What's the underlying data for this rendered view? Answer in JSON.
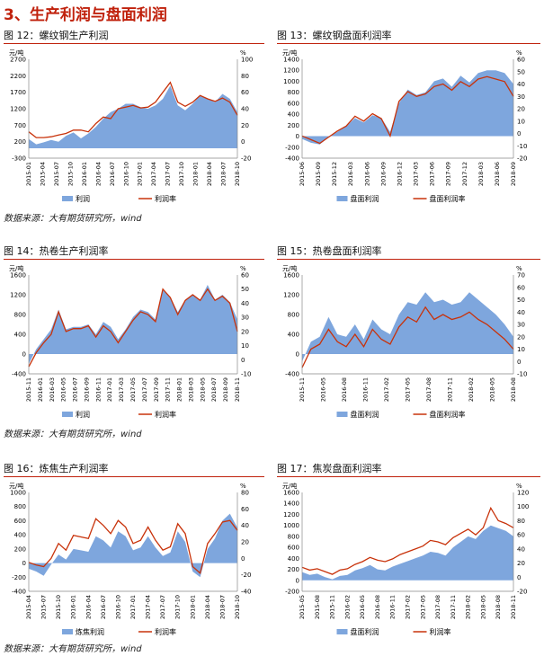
{
  "section_title": "3、生产利润与盘面利润",
  "source_note": "数据来源：大有期货研究所，wind",
  "colors": {
    "area": "#7ea6dd",
    "line": "#c8320a",
    "accent": "#c0210c"
  },
  "chart_data": [
    {
      "id": "c12",
      "type": "area",
      "title": "图 12：螺纹钢生产利润",
      "left_unit": "元/吨",
      "right_unit": "%",
      "ylim": [
        -300,
        2700
      ],
      "yticks": [
        -300,
        200,
        700,
        1200,
        1700,
        2200,
        2700
      ],
      "y2lim": [
        -20,
        100
      ],
      "y2ticks": [
        -20,
        0,
        20,
        40,
        60,
        80,
        100
      ],
      "xlabels": [
        "2015-01",
        "2015-04",
        "2015-07",
        "2015-10",
        "2016-01",
        "2016-04",
        "2016-07",
        "2016-10",
        "2017-01",
        "2017-04",
        "2017-07",
        "2017-10",
        "2018-01",
        "2018-04",
        "2018-07",
        "2018-10"
      ],
      "series": [
        {
          "name": "利润",
          "kind": "area",
          "values": [
            280,
            120,
            180,
            250,
            200,
            380,
            480,
            300,
            450,
            650,
            900,
            1100,
            1200,
            1350,
            1350,
            1250,
            1200,
            1300,
            1500,
            1900,
            1300,
            1150,
            1350,
            1600,
            1500,
            1400,
            1650,
            1500,
            1100
          ]
        },
        {
          "name": "利润率",
          "kind": "line",
          "values": [
            12,
            5,
            5,
            6,
            8,
            10,
            14,
            14,
            12,
            22,
            30,
            28,
            40,
            42,
            44,
            41,
            42,
            48,
            60,
            72,
            48,
            43,
            48,
            56,
            52,
            49,
            53,
            48,
            32
          ]
        }
      ]
    },
    {
      "id": "c13",
      "type": "area",
      "title": "图 13：螺纹钢盘面利润率",
      "left_unit": "元/吨",
      "right_unit": "%",
      "ylim": [
        -400,
        1400
      ],
      "yticks": [
        -400,
        -200,
        0,
        200,
        400,
        600,
        800,
        1000,
        1200,
        1400
      ],
      "y2lim": [
        -20,
        60
      ],
      "y2ticks": [
        -20,
        -10,
        0,
        10,
        20,
        30,
        40,
        50,
        60
      ],
      "xlabels": [
        "2015-06",
        "2015-09",
        "2015-12",
        "2016-03",
        "2016-06",
        "2016-09",
        "2016-12",
        "2017-03",
        "2017-06",
        "2017-09",
        "2017-12",
        "2018-03",
        "2018-06",
        "2018-09"
      ],
      "series": [
        {
          "name": "盘面利润",
          "kind": "area",
          "values": [
            -50,
            -120,
            -150,
            -20,
            80,
            180,
            330,
            250,
            380,
            330,
            80,
            600,
            850,
            750,
            800,
            1000,
            1050,
            900,
            1100,
            980,
            1150,
            1200,
            1200,
            1150,
            950
          ]
        },
        {
          "name": "盘面利润率",
          "kind": "line",
          "values": [
            -2,
            -5,
            -8,
            -3,
            2,
            6,
            14,
            10,
            16,
            12,
            -2,
            26,
            34,
            30,
            32,
            38,
            40,
            35,
            42,
            38,
            44,
            46,
            44,
            42,
            30
          ]
        }
      ]
    },
    {
      "id": "c14",
      "type": "area",
      "title": "图 14：热卷生产利润率",
      "left_unit": "元/吨",
      "right_unit": "%",
      "ylim": [
        -400,
        1600
      ],
      "yticks": [
        -400,
        0,
        400,
        800,
        1200,
        1600
      ],
      "y2lim": [
        -10,
        60
      ],
      "y2ticks": [
        -10,
        0,
        10,
        20,
        30,
        40,
        50,
        60
      ],
      "xlabels": [
        "2015-11",
        "2016-01",
        "2016-03",
        "2016-05",
        "2016-07",
        "2016-09",
        "2016-11",
        "2017-01",
        "2017-03",
        "2017-05",
        "2017-07",
        "2017-09",
        "2017-11",
        "2018-01",
        "2018-03",
        "2018-05",
        "2018-07",
        "2018-09",
        "2018-11"
      ],
      "series": [
        {
          "name": "利润",
          "kind": "area",
          "values": [
            -200,
            100,
            300,
            500,
            900,
            500,
            550,
            550,
            600,
            400,
            650,
            550,
            300,
            500,
            750,
            900,
            850,
            700,
            1300,
            1150,
            850,
            1100,
            1200,
            1100,
            1400,
            1100,
            1200,
            1050,
            700
          ]
        },
        {
          "name": "利润率",
          "kind": "line",
          "values": [
            -5,
            5,
            12,
            18,
            34,
            20,
            22,
            22,
            24,
            16,
            24,
            20,
            12,
            20,
            28,
            34,
            32,
            27,
            50,
            44,
            32,
            42,
            46,
            42,
            50,
            42,
            45,
            40,
            20
          ]
        }
      ]
    },
    {
      "id": "c15",
      "type": "area",
      "title": "图 15：热卷盘面利润率",
      "left_unit": "元/吨",
      "right_unit": "%",
      "ylim": [
        -400,
        1600
      ],
      "yticks": [
        -400,
        0,
        400,
        800,
        1200,
        1600
      ],
      "y2lim": [
        -10,
        70
      ],
      "y2ticks": [
        -10,
        0,
        10,
        20,
        30,
        40,
        50,
        60,
        70
      ],
      "xlabels": [
        "2015-11",
        "2016-05",
        "2016-08",
        "2016-11",
        "2017-02",
        "2017-05",
        "2017-08",
        "2017-11",
        "2018-02",
        "2018-05",
        "2018-08"
      ],
      "series": [
        {
          "name": "盘面利润",
          "kind": "area",
          "values": [
            -150,
            250,
            350,
            750,
            400,
            350,
            600,
            300,
            700,
            500,
            400,
            800,
            1050,
            1000,
            1250,
            1050,
            1100,
            1000,
            1050,
            1250,
            1100,
            950,
            800,
            600,
            350
          ]
        },
        {
          "name": "盘面利润率",
          "kind": "line",
          "values": [
            -5,
            10,
            14,
            26,
            16,
            12,
            22,
            12,
            26,
            18,
            14,
            28,
            36,
            32,
            44,
            34,
            38,
            34,
            36,
            40,
            34,
            30,
            24,
            18,
            10
          ]
        }
      ]
    },
    {
      "id": "c16",
      "type": "area",
      "title": "图 16：炼焦生产利润率",
      "left_unit": "元/吨",
      "right_unit": "%",
      "ylim": [
        -400,
        1000
      ],
      "yticks": [
        -400,
        -200,
        0,
        200,
        400,
        600,
        800,
        1000
      ],
      "y2lim": [
        -40,
        80
      ],
      "y2ticks": [
        -40,
        -20,
        0,
        20,
        40,
        60,
        80
      ],
      "xlabels": [
        "2015-04",
        "2015-07",
        "2015-10",
        "2016-01",
        "2016-04",
        "2016-07",
        "2016-10",
        "2017-01",
        "2017-04",
        "2017-07",
        "2017-10",
        "2018-01",
        "2018-04",
        "2018-07",
        "2018-10"
      ],
      "series": [
        {
          "name": "炼焦利润",
          "kind": "area",
          "values": [
            -80,
            -120,
            -180,
            -20,
            120,
            50,
            200,
            180,
            160,
            380,
            320,
            220,
            450,
            380,
            180,
            220,
            380,
            220,
            100,
            150,
            450,
            300,
            -120,
            -200,
            200,
            350,
            600,
            700,
            500
          ]
        },
        {
          "name": "利润率",
          "kind": "line",
          "values": [
            -5,
            -8,
            -10,
            0,
            18,
            10,
            28,
            26,
            24,
            48,
            40,
            30,
            46,
            38,
            18,
            22,
            38,
            22,
            10,
            14,
            42,
            30,
            -10,
            -18,
            18,
            30,
            44,
            46,
            34
          ]
        }
      ]
    },
    {
      "id": "c17",
      "type": "area",
      "title": "图 17：焦炭盘面利润率",
      "left_unit": "元/吨",
      "right_unit": "%",
      "ylim": [
        -200,
        1600
      ],
      "yticks": [
        -200,
        0,
        200,
        400,
        600,
        800,
        1000,
        1200,
        1400,
        1600
      ],
      "y2lim": [
        -20,
        120
      ],
      "y2ticks": [
        -20,
        0,
        20,
        40,
        60,
        80,
        100,
        120
      ],
      "xlabels": [
        "2015-05",
        "2015-08",
        "2015-11",
        "2016-02",
        "2016-05",
        "2016-08",
        "2016-11",
        "2017-02",
        "2017-05",
        "2017-08",
        "2017-11",
        "2018-02",
        "2018-05",
        "2018-08",
        "2018-11"
      ],
      "series": [
        {
          "name": "盘面利润",
          "kind": "area",
          "values": [
            150,
            100,
            120,
            60,
            20,
            80,
            100,
            180,
            220,
            280,
            200,
            180,
            250,
            300,
            350,
            400,
            450,
            520,
            500,
            450,
            600,
            700,
            800,
            750,
            900,
            1000,
            950,
            900,
            800
          ]
        },
        {
          "name": "利润率",
          "kind": "line",
          "values": [
            14,
            10,
            12,
            8,
            4,
            10,
            12,
            18,
            22,
            28,
            24,
            22,
            26,
            32,
            36,
            40,
            44,
            52,
            50,
            46,
            56,
            62,
            68,
            60,
            70,
            98,
            80,
            76,
            70
          ]
        }
      ]
    }
  ]
}
